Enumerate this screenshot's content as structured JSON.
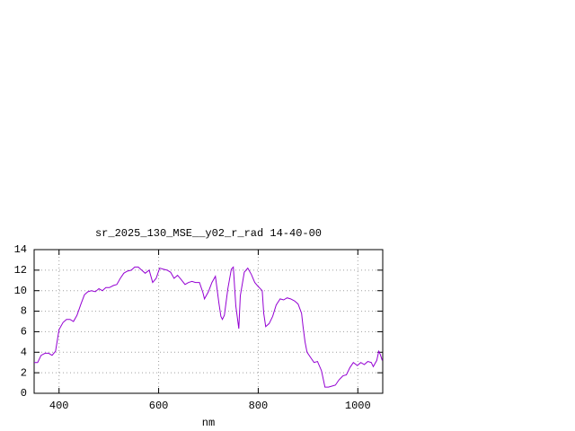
{
  "chart_data": {
    "type": "line",
    "title": "sr_2025_130_MSE__y02_r_rad 14-40-00",
    "x_label": "nm",
    "color": "#9400d3",
    "grid": true,
    "xlim": [
      350,
      1050
    ],
    "xticks": [
      400,
      600,
      800,
      1000
    ],
    "ylim": [
      0,
      14
    ],
    "yticks": [
      0,
      2,
      4,
      6,
      8,
      10,
      12,
      14
    ],
    "x": [
      350,
      357,
      364,
      372,
      379,
      386,
      393,
      400,
      408,
      415,
      422,
      429,
      436,
      444,
      451,
      458,
      465,
      473,
      480,
      487,
      494,
      501,
      509,
      516,
      523,
      530,
      537,
      545,
      552,
      559,
      566,
      573,
      581,
      588,
      595,
      602,
      609,
      617,
      624,
      631,
      638,
      645,
      653,
      660,
      667,
      674,
      682,
      689,
      692,
      700,
      707,
      714,
      721,
      725,
      728,
      732,
      739,
      746,
      750,
      755,
      761,
      764,
      772,
      779,
      786,
      793,
      800,
      808,
      811,
      815,
      822,
      829,
      836,
      844,
      851,
      858,
      865,
      873,
      880,
      887,
      890,
      894,
      898,
      905,
      912,
      919,
      927,
      934,
      941,
      948,
      955,
      962,
      970,
      977,
      984,
      991,
      999,
      1006,
      1013,
      1020,
      1027,
      1031,
      1038,
      1042,
      1045,
      1049
    ],
    "values": [
      3.0,
      3.0,
      3.7,
      3.9,
      3.9,
      3.7,
      4.1,
      6.2,
      6.9,
      7.2,
      7.2,
      7.0,
      7.6,
      8.7,
      9.6,
      9.9,
      10.0,
      9.9,
      10.2,
      10.0,
      10.3,
      10.3,
      10.5,
      10.6,
      11.2,
      11.7,
      11.9,
      12.0,
      12.3,
      12.3,
      12.0,
      11.7,
      12.0,
      10.8,
      11.2,
      12.2,
      12.1,
      12.0,
      11.8,
      11.2,
      11.5,
      11.1,
      10.6,
      10.8,
      10.9,
      10.8,
      10.8,
      9.8,
      9.2,
      9.9,
      10.8,
      11.4,
      8.8,
      7.5,
      7.2,
      7.6,
      10.2,
      12.1,
      12.3,
      8.5,
      6.3,
      9.5,
      11.8,
      12.2,
      11.6,
      10.8,
      10.4,
      10.0,
      7.8,
      6.5,
      6.8,
      7.5,
      8.6,
      9.2,
      9.1,
      9.3,
      9.2,
      9.0,
      8.7,
      7.8,
      6.5,
      5.0,
      4.0,
      3.5,
      3.0,
      3.1,
      2.2,
      0.6,
      0.6,
      0.7,
      0.8,
      1.3,
      1.7,
      1.8,
      2.5,
      3.0,
      2.7,
      3.0,
      2.8,
      3.1,
      3.0,
      2.6,
      3.2,
      4.1,
      3.8,
      3.2
    ]
  }
}
